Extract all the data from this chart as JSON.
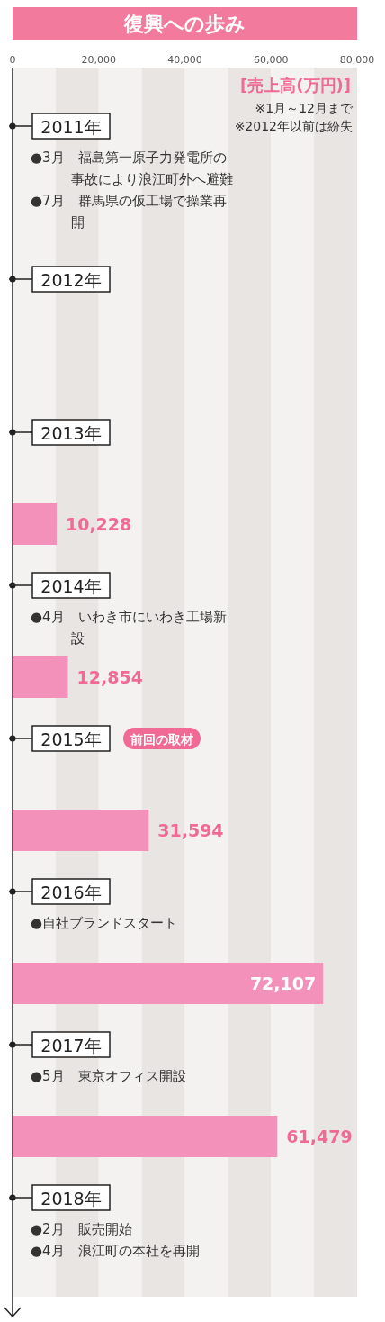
{
  "chart_data": {
    "type": "bar",
    "orientation": "horizontal",
    "title": "復興への歩み",
    "xlabel": "[売上高(万円)]",
    "categories": [
      "2011年",
      "2012年",
      "2013年",
      "2014年",
      "2015年",
      "2016年",
      "2017年",
      "2018年"
    ],
    "series": [
      {
        "color": "#f491bb",
        "values": [
          null,
          null,
          10228,
          12854,
          31594,
          72107,
          61479,
          null
        ],
        "value_labels": [
          null,
          null,
          "10,228",
          "12,854",
          "31,594",
          "72,107",
          "61,479",
          null
        ]
      }
    ],
    "xlim": [
      0,
      80000
    ],
    "xticks": [
      {
        "value": 0,
        "label": "0"
      },
      {
        "value": 20000,
        "label": "20,000"
      },
      {
        "value": 40000,
        "label": "40,000"
      },
      {
        "value": 60000,
        "label": "60,000"
      },
      {
        "value": 80000,
        "label": "80,000"
      }
    ],
    "bands": [
      {
        "axis": "x",
        "from": 0,
        "to": 10000,
        "color": "#f4f2f0"
      },
      {
        "axis": "x",
        "from": 10000,
        "to": 20000,
        "color": "#e8e5e2"
      },
      {
        "axis": "x",
        "from": 20000,
        "to": 30000,
        "color": "#f4f2f0"
      },
      {
        "axis": "x",
        "from": 30000,
        "to": 40000,
        "color": "#e8e5e2"
      },
      {
        "axis": "x",
        "from": 40000,
        "to": 50000,
        "color": "#f4f2f0"
      },
      {
        "axis": "x",
        "from": 50000,
        "to": 60000,
        "color": "#e8e5e2"
      },
      {
        "axis": "x",
        "from": 60000,
        "to": 70000,
        "color": "#f4f2f0"
      },
      {
        "axis": "x",
        "from": 70000,
        "to": 80000,
        "color": "#e8e5e2"
      }
    ],
    "annotations": [
      "※1月～12月まで",
      "※2012年以前は紛失",
      "●3月　福島第一原子力発電所の事故により浪江町外へ避難",
      "●7月　群馬県の仮工場で操業再開",
      "●4月　いわき市にいわき工場新設",
      "前回の取材",
      "●自社ブランドスタート",
      "●5月　東京オフィス開設",
      "●2月　販売開始",
      "●4月　浪江町の本社を再開"
    ]
  }
}
